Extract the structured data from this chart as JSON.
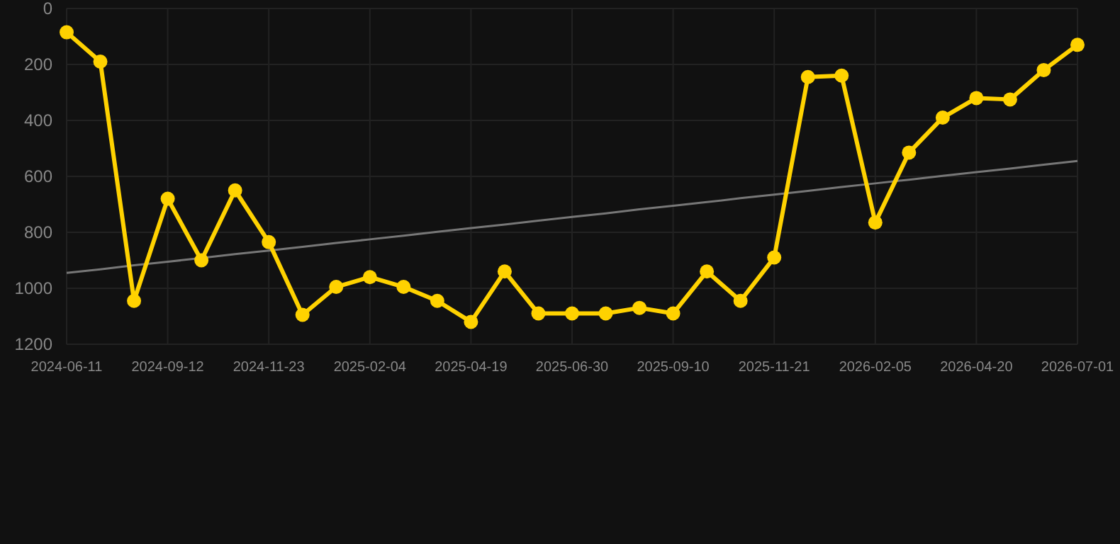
{
  "chart_data": {
    "type": "line",
    "categories": [
      "2024-06-11",
      null,
      null,
      "2024-09-12",
      null,
      null,
      "2024-11-23",
      null,
      null,
      "2025-02-04",
      null,
      null,
      "2025-04-19",
      null,
      null,
      "2025-06-30",
      null,
      null,
      "2025-09-10",
      null,
      null,
      "2025-11-21",
      null,
      null,
      "2026-02-05",
      null,
      null,
      "2026-04-20",
      null,
      null,
      "2026-07-01"
    ],
    "series": [
      {
        "color": "#ffd200",
        "marker": "circle",
        "values": [
          85,
          190,
          1045,
          680,
          900,
          650,
          835,
          1095,
          995,
          960,
          995,
          1045,
          1120,
          940,
          1090,
          1090,
          1090,
          1070,
          1090,
          940,
          1045,
          890,
          245,
          240,
          765,
          515,
          390,
          320,
          325,
          220,
          130
        ]
      },
      {
        "color": "#777777",
        "marker": "none",
        "values": [
          945,
          932,
          918,
          905,
          892,
          878,
          865,
          852,
          838,
          825,
          812,
          798,
          785,
          772,
          758,
          745,
          732,
          718,
          705,
          692,
          678,
          665,
          652,
          638,
          625,
          612,
          598,
          585,
          572,
          558,
          545
        ]
      }
    ],
    "ylim": [
      1200,
      0
    ],
    "yticks": [
      0,
      200,
      400,
      600,
      800,
      1000,
      1200
    ],
    "grid": true
  }
}
